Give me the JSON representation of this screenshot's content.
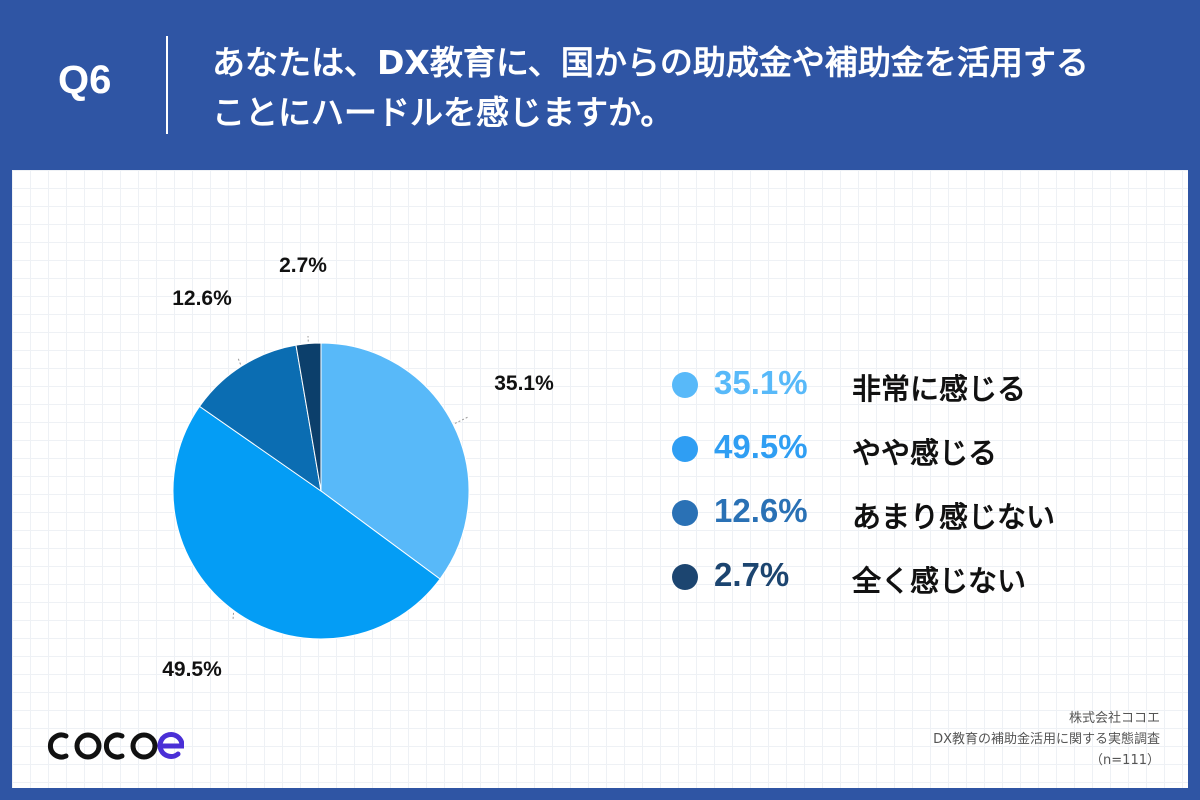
{
  "header": {
    "question_label": "Q6",
    "title_line1": "あなたは、DX教育に、国からの助成金や補助金を活用する",
    "title_line2": "ことにハードルを感じますか。"
  },
  "chart_data": {
    "type": "pie",
    "start_angle_deg": 0,
    "direction": "clockwise",
    "slices": [
      {
        "label": "非常に感じる",
        "value": 35.1,
        "display": "35.1%",
        "color": "#58b9f9"
      },
      {
        "label": "やや感じる",
        "value": 49.5,
        "display": "49.5%",
        "color": "#049df5"
      },
      {
        "label": "あまり感じない",
        "value": 12.6,
        "display": "12.6%",
        "color": "#0b6db2"
      },
      {
        "label": "全く感じない",
        "value": 2.7,
        "display": "2.7%",
        "color": "#0c3f6b"
      }
    ]
  },
  "legend": {
    "items": [
      {
        "value": "35.1%",
        "label": "非常に感じる",
        "color": "#58b9f9"
      },
      {
        "value": "49.5%",
        "label": "やや感じる",
        "color": "#2f9ef3"
      },
      {
        "value": "12.6%",
        "label": "あまり感じない",
        "color": "#2a71b5"
      },
      {
        "value": "2.7%",
        "label": "全く感じない",
        "color": "#1c4570"
      }
    ]
  },
  "footer": {
    "logo_text": "cocoe",
    "source_company": "株式会社ココエ",
    "source_survey": "DX教育の補助金活用に関する実態調査",
    "sample_size": "（n=111）"
  }
}
